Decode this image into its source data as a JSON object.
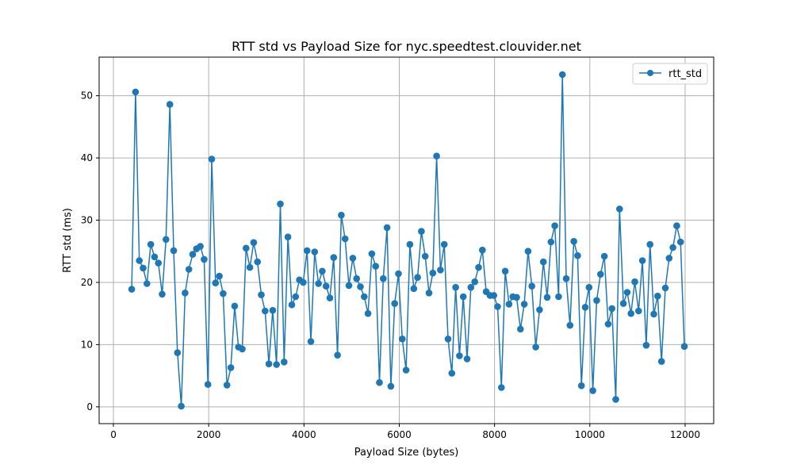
{
  "chart_data": {
    "type": "line",
    "title": "RTT std vs Payload Size for nyc.speedtest.clouvider.net",
    "xlabel": "Payload Size (bytes)",
    "ylabel": "RTT std (ms)",
    "xlim": [
      -300,
      12600
    ],
    "ylim": [
      -2.7,
      56.2
    ],
    "xticks": [
      0,
      2000,
      4000,
      6000,
      8000,
      10000,
      12000
    ],
    "yticks": [
      0,
      10,
      20,
      30,
      40,
      50
    ],
    "grid": true,
    "legend_position": "top-right",
    "colors": {
      "series": "#1f77b4",
      "grid": "#b0b0b0"
    },
    "series": [
      {
        "name": "rtt_std",
        "marker": "circle",
        "x": [
          384,
          464,
          544,
          624,
          704,
          784,
          864,
          944,
          1024,
          1104,
          1184,
          1264,
          1344,
          1424,
          1504,
          1584,
          1664,
          1744,
          1824,
          1904,
          1984,
          2064,
          2144,
          2224,
          2304,
          2384,
          2464,
          2544,
          2624,
          2704,
          2784,
          2864,
          2944,
          3024,
          3104,
          3184,
          3264,
          3344,
          3424,
          3504,
          3584,
          3664,
          3744,
          3824,
          3904,
          3984,
          4064,
          4144,
          4224,
          4304,
          4384,
          4464,
          4544,
          4624,
          4704,
          4784,
          4864,
          4944,
          5024,
          5104,
          5184,
          5264,
          5344,
          5424,
          5504,
          5584,
          5664,
          5744,
          5824,
          5904,
          5984,
          6064,
          6144,
          6224,
          6304,
          6384,
          6464,
          6544,
          6624,
          6704,
          6784,
          6864,
          6944,
          7024,
          7104,
          7184,
          7264,
          7344,
          7424,
          7504,
          7584,
          7664,
          7744,
          7824,
          7904,
          7984,
          8064,
          8144,
          8224,
          8304,
          8384,
          8464,
          8544,
          8624,
          8704,
          8784,
          8864,
          8944,
          9024,
          9104,
          9184,
          9264,
          9344,
          9424,
          9504,
          9584,
          9664,
          9744,
          9824,
          9904,
          9984,
          10064,
          10144,
          10224,
          10304,
          10384,
          10464,
          10544,
          10624,
          10704,
          10784,
          10864,
          10944,
          11024,
          11104,
          11184,
          11264,
          11344,
          11424,
          11504,
          11584,
          11664,
          11744,
          11824,
          11904,
          11984
        ],
        "values": [
          18.9,
          50.6,
          23.5,
          22.3,
          19.8,
          26.1,
          24.1,
          23.1,
          18.1,
          26.9,
          48.6,
          25.1,
          8.7,
          0.1,
          18.3,
          22.1,
          24.5,
          25.4,
          25.8,
          23.7,
          3.6,
          39.8,
          19.9,
          21.0,
          18.2,
          3.5,
          6.3,
          16.2,
          9.6,
          9.3,
          25.5,
          22.4,
          26.4,
          23.3,
          18.0,
          15.4,
          6.9,
          15.5,
          6.8,
          32.6,
          7.2,
          27.3,
          16.4,
          17.7,
          20.4,
          20.0,
          25.1,
          10.5,
          24.9,
          19.8,
          21.8,
          19.4,
          17.5,
          24.0,
          8.3,
          30.8,
          27.0,
          19.5,
          23.9,
          20.6,
          19.3,
          17.7,
          15.0,
          24.6,
          22.6,
          3.9,
          20.6,
          28.8,
          3.3,
          16.6,
          21.4,
          10.9,
          5.9,
          26.1,
          19.0,
          20.8,
          28.2,
          24.2,
          18.3,
          21.5,
          40.3,
          22.0,
          26.1,
          10.9,
          5.4,
          19.2,
          8.2,
          17.7,
          7.7,
          19.2,
          20.1,
          22.4,
          25.2,
          18.5,
          17.9,
          17.9,
          16.1,
          3.1,
          21.8,
          16.5,
          17.7,
          17.6,
          12.5,
          16.5,
          25.0,
          19.4,
          9.6,
          15.6,
          23.3,
          17.6,
          26.5,
          29.1,
          17.7,
          53.4,
          20.6,
          13.1,
          26.6,
          24.3,
          3.4,
          16.0,
          19.2,
          2.6,
          17.1,
          21.3,
          24.2,
          13.3,
          15.8,
          1.2,
          31.8,
          16.6,
          18.4,
          15.0,
          20.1,
          15.4,
          23.5,
          9.9,
          26.1,
          14.9,
          17.8,
          7.3,
          19.1,
          23.9,
          25.6,
          29.1,
          26.5,
          9.7
        ]
      }
    ]
  }
}
